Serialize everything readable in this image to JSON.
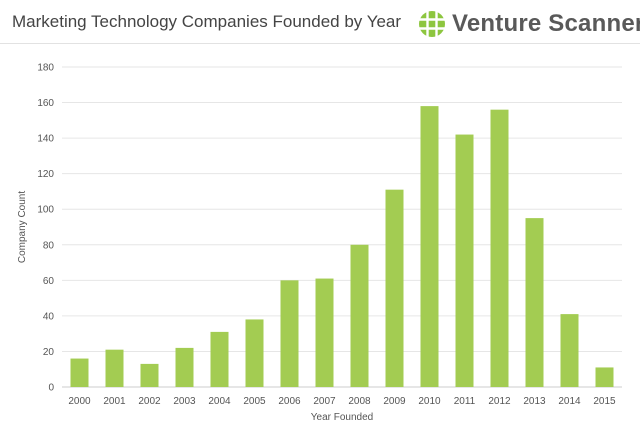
{
  "header": {
    "title": "Marketing Technology Companies Founded by Year",
    "brand": "Venture Scanner",
    "brand_icon": "grid-globe-icon"
  },
  "colors": {
    "bar": "#a3cc52",
    "logo": "#8dc63f",
    "grid": "#e6e6e6",
    "text": "#555555"
  },
  "chart_data": {
    "type": "bar",
    "title": "Marketing Technology Companies Founded by Year",
    "xlabel": "Year Founded",
    "ylabel": "Company Count",
    "categories": [
      "2000",
      "2001",
      "2002",
      "2003",
      "2004",
      "2005",
      "2006",
      "2007",
      "2008",
      "2009",
      "2010",
      "2011",
      "2012",
      "2013",
      "2014",
      "2015"
    ],
    "values": [
      16,
      21,
      13,
      22,
      31,
      38,
      60,
      61,
      80,
      111,
      158,
      142,
      156,
      95,
      41,
      11
    ],
    "ylim": [
      0,
      180
    ],
    "yticks": [
      0,
      20,
      40,
      60,
      80,
      100,
      120,
      140,
      160,
      180
    ],
    "grid": true,
    "legend": "none"
  }
}
